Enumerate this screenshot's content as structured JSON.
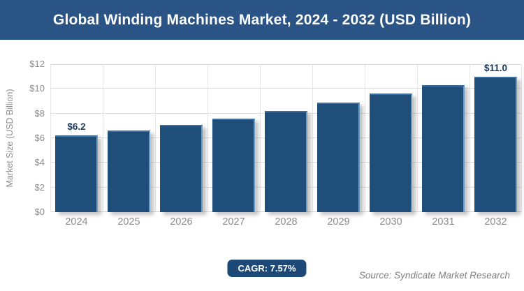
{
  "header": {
    "title": "Global Winding Machines Market, 2024 - 2032 (USD Billion)"
  },
  "chart_data": {
    "type": "bar",
    "title": "Global Winding Machines Market, 2024 - 2032 (USD Billion)",
    "categories": [
      "2024",
      "2025",
      "2026",
      "2027",
      "2028",
      "2029",
      "2030",
      "2031",
      "2032"
    ],
    "values": [
      6.2,
      6.6,
      7.1,
      7.6,
      8.2,
      8.9,
      9.6,
      10.3,
      11.0
    ],
    "bar_labels": [
      "$6.2",
      "",
      "",
      "",
      "",
      "",
      "",
      "",
      "$11.0"
    ],
    "xlabel": "",
    "ylabel": "Market Size (USD Billion)",
    "ylim": [
      0,
      12
    ],
    "yticks": [
      0,
      2,
      4,
      6,
      8,
      10,
      12
    ],
    "ytick_labels": [
      "$0",
      "$2",
      "$4",
      "$6",
      "$8",
      "$10",
      "$12"
    ],
    "grid": true,
    "legend_position": "none"
  },
  "footer": {
    "cagr_badge": "CAGR: 7.57%",
    "source": "Source: Syndicate Market Research"
  },
  "colors": {
    "header_bg": "#2A5486",
    "bar": "#1F4E7B",
    "bar_label": "#1B3A60",
    "axis_text": "#8C8C8C",
    "gridline": "#DCDCDC",
    "badge_bg": "#1C4977",
    "source_text": "#7F7F7F"
  }
}
